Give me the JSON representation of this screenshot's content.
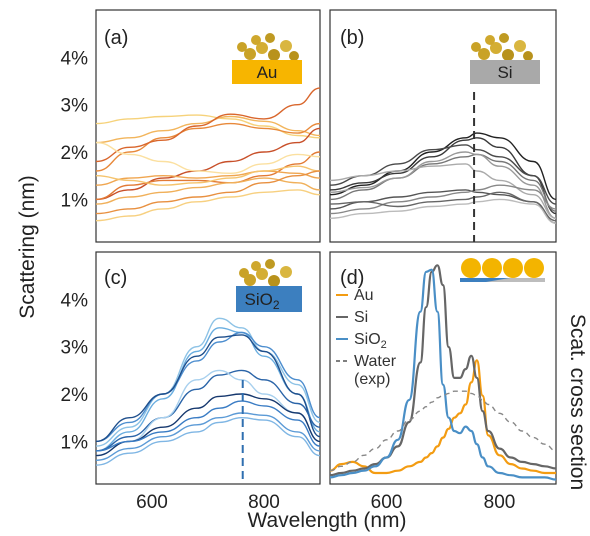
{
  "figure": {
    "ylabel": "Scattering (nm)",
    "xlabel": "Wavelength (nm)",
    "right_label": "Scat. cross section"
  },
  "chart_data": [
    {
      "panel": "(a)",
      "type": "line",
      "material_badge": "Au",
      "badge_color": "#f7b500",
      "xlim": [
        500,
        900
      ],
      "ylim": [
        0.1,
        5.0
      ],
      "yticks": [
        "1%",
        "2%",
        "3%",
        "4%"
      ],
      "ytick_values": [
        1,
        2,
        3,
        4
      ],
      "xticks": [],
      "x": [
        500,
        560,
        620,
        680,
        740,
        800,
        860,
        900
      ],
      "series": [
        {
          "color": "#f6d27a",
          "values": [
            2.6,
            2.7,
            2.75,
            2.78,
            2.7,
            2.55,
            2.35,
            2.3
          ]
        },
        {
          "color": "#f2b55c",
          "values": [
            2.2,
            2.3,
            2.45,
            2.6,
            2.75,
            2.65,
            2.45,
            2.35
          ]
        },
        {
          "color": "#e8893a",
          "values": [
            1.6,
            2.0,
            2.3,
            2.5,
            2.6,
            2.5,
            2.4,
            2.6
          ]
        },
        {
          "color": "#d9662c",
          "values": [
            1.8,
            2.1,
            2.25,
            2.55,
            2.8,
            2.7,
            3.0,
            3.35
          ]
        },
        {
          "color": "#c8502a",
          "values": [
            1.0,
            1.2,
            1.45,
            1.6,
            1.8,
            2.0,
            2.2,
            2.5
          ]
        },
        {
          "color": "#e27a35",
          "values": [
            1.0,
            1.3,
            1.4,
            1.4,
            1.35,
            1.5,
            1.75,
            2.0
          ]
        },
        {
          "color": "#f0a650",
          "values": [
            1.3,
            1.45,
            1.5,
            1.45,
            1.5,
            1.6,
            1.55,
            1.45
          ]
        },
        {
          "color": "#f5c46e",
          "values": [
            1.5,
            1.4,
            1.3,
            1.35,
            1.45,
            1.6,
            1.7,
            1.6
          ]
        },
        {
          "color": "#f0b05a",
          "values": [
            0.9,
            1.05,
            1.15,
            1.25,
            1.35,
            1.45,
            1.35,
            1.2
          ]
        },
        {
          "color": "#e89040",
          "values": [
            0.7,
            0.8,
            0.95,
            1.05,
            1.15,
            1.35,
            1.5,
            1.6
          ]
        },
        {
          "color": "#f7d080",
          "values": [
            0.55,
            0.65,
            0.8,
            0.95,
            1.05,
            1.15,
            1.2,
            1.1
          ]
        },
        {
          "color": "#fbe0a0",
          "values": [
            2.2,
            1.95,
            1.8,
            1.6,
            1.55,
            1.75,
            1.95,
            1.9
          ]
        }
      ]
    },
    {
      "panel": "(b)",
      "type": "line",
      "material_badge": "Si",
      "badge_color": "#a9a9a9",
      "xlim": [
        500,
        900
      ],
      "ylim": [
        0.1,
        5.0
      ],
      "yticks": [],
      "xticks": [],
      "vline_x": 755,
      "x": [
        500,
        560,
        620,
        680,
        740,
        760,
        800,
        860,
        900
      ],
      "series": [
        {
          "color": "#222222",
          "values": [
            1.1,
            1.3,
            1.6,
            2.0,
            2.3,
            2.4,
            2.3,
            1.8,
            1.0
          ]
        },
        {
          "color": "#3a3a3a",
          "values": [
            1.2,
            1.35,
            1.55,
            1.9,
            2.25,
            2.3,
            2.1,
            1.5,
            0.7
          ]
        },
        {
          "color": "#4a4a4a",
          "values": [
            1.3,
            1.5,
            1.75,
            2.05,
            2.15,
            2.05,
            1.9,
            1.5,
            0.9
          ]
        },
        {
          "color": "#777777",
          "values": [
            1.0,
            1.2,
            1.45,
            1.75,
            1.9,
            1.95,
            1.8,
            1.4,
            0.75
          ]
        },
        {
          "color": "#999999",
          "values": [
            1.15,
            1.25,
            1.45,
            1.8,
            2.0,
            1.95,
            1.7,
            1.3,
            0.6
          ]
        },
        {
          "color": "#aaaaaa",
          "values": [
            1.4,
            1.5,
            1.6,
            1.7,
            1.75,
            1.6,
            1.4,
            1.1,
            0.6
          ]
        },
        {
          "color": "#555555",
          "values": [
            0.8,
            0.95,
            1.05,
            1.15,
            1.2,
            1.15,
            1.1,
            0.95,
            0.5
          ]
        },
        {
          "color": "#888888",
          "values": [
            0.7,
            0.8,
            0.95,
            1.05,
            1.15,
            1.2,
            1.3,
            1.2,
            0.8
          ]
        },
        {
          "color": "#666666",
          "values": [
            0.9,
            0.95,
            0.85,
            0.95,
            1.0,
            1.05,
            1.15,
            0.95,
            0.55
          ]
        },
        {
          "color": "#bbbbbb",
          "values": [
            0.6,
            0.7,
            0.75,
            0.85,
            0.9,
            0.95,
            1.0,
            0.9,
            0.5
          ]
        }
      ]
    },
    {
      "panel": "(c)",
      "type": "line",
      "material_badge": "SiO",
      "material_badge_sub": "2",
      "badge_color": "#3c7fbf",
      "xlim": [
        500,
        900
      ],
      "ylim": [
        0.1,
        5.0
      ],
      "yticks": [
        "1%",
        "2%",
        "3%",
        "4%"
      ],
      "ytick_values": [
        1,
        2,
        3,
        4
      ],
      "xticks": [
        "600",
        "800"
      ],
      "xtick_values": [
        600,
        800
      ],
      "vline_x": 762,
      "x": [
        500,
        560,
        620,
        680,
        720,
        760,
        800,
        860,
        900
      ],
      "series": [
        {
          "color": "#8ec3e6",
          "values": [
            0.9,
            1.3,
            2.0,
            3.0,
            3.6,
            3.4,
            2.9,
            2.2,
            1.4
          ]
        },
        {
          "color": "#6aaee0",
          "values": [
            0.8,
            1.2,
            1.9,
            2.9,
            3.4,
            3.3,
            2.8,
            2.0,
            1.2
          ]
        },
        {
          "color": "#4d8ecf",
          "values": [
            1.0,
            1.4,
            2.0,
            2.7,
            3.1,
            3.3,
            3.0,
            2.3,
            1.5
          ]
        },
        {
          "color": "#1f4f8c",
          "values": [
            1.0,
            1.5,
            2.0,
            2.8,
            3.2,
            3.25,
            2.9,
            2.0,
            1.1
          ]
        },
        {
          "color": "#2a64a8",
          "values": [
            0.8,
            1.1,
            1.5,
            2.1,
            2.4,
            2.5,
            2.3,
            1.8,
            1.3
          ]
        },
        {
          "color": "#a8d0ee",
          "values": [
            0.7,
            1.0,
            1.5,
            2.3,
            2.5,
            2.3,
            2.0,
            1.6,
            1.0
          ]
        },
        {
          "color": "#16386e",
          "values": [
            0.7,
            1.0,
            1.3,
            1.7,
            1.95,
            2.0,
            1.9,
            1.6,
            1.0
          ]
        },
        {
          "color": "#3a7cc4",
          "values": [
            0.8,
            1.0,
            1.2,
            1.5,
            1.7,
            1.85,
            1.75,
            1.45,
            0.9
          ]
        },
        {
          "color": "#5b9ad6",
          "values": [
            0.6,
            0.85,
            1.1,
            1.35,
            1.5,
            1.6,
            1.55,
            1.2,
            0.8
          ]
        },
        {
          "color": "#7fb6e4",
          "values": [
            0.5,
            0.75,
            1.0,
            1.2,
            1.4,
            1.5,
            1.45,
            1.1,
            0.7
          ]
        }
      ]
    },
    {
      "panel": "(d)",
      "type": "line",
      "xlim": [
        500,
        900
      ],
      "ylim": [
        0,
        1.05
      ],
      "yticks": [],
      "xticks": [
        "600",
        "800"
      ],
      "xtick_values": [
        600,
        800
      ],
      "legend": [
        {
          "label": "Au",
          "color": "#f39c12",
          "dash": false
        },
        {
          "label": "Si",
          "color": "#666666",
          "dash": false
        },
        {
          "label": "SiO",
          "sub": "2",
          "color": "#4a8fc6",
          "dash": false
        },
        {
          "label": "Water",
          "label2": "(exp)",
          "color": "#555555",
          "dash": true
        }
      ],
      "x": [
        500,
        520,
        540,
        560,
        580,
        600,
        620,
        640,
        660,
        670,
        680,
        690,
        700,
        710,
        720,
        730,
        740,
        750,
        760,
        770,
        780,
        800,
        820,
        840,
        860,
        880,
        900
      ],
      "series": [
        {
          "color": "#f39c12",
          "dash": false,
          "values": [
            0.06,
            0.09,
            0.1,
            0.08,
            0.05,
            0.05,
            0.06,
            0.08,
            0.1,
            0.12,
            0.14,
            0.17,
            0.21,
            0.25,
            0.3,
            0.32,
            0.36,
            0.46,
            0.56,
            0.4,
            0.22,
            0.13,
            0.09,
            0.07,
            0.06,
            0.05,
            0.05
          ]
        },
        {
          "color": "#666666",
          "dash": false,
          "values": [
            0.04,
            0.05,
            0.06,
            0.07,
            0.09,
            0.12,
            0.17,
            0.28,
            0.55,
            0.8,
            0.96,
            0.99,
            0.9,
            0.62,
            0.48,
            0.48,
            0.52,
            0.58,
            0.48,
            0.33,
            0.24,
            0.16,
            0.12,
            0.1,
            0.09,
            0.08,
            0.07
          ]
        },
        {
          "color": "#4a8fc6",
          "dash": false,
          "values": [
            0.03,
            0.04,
            0.05,
            0.06,
            0.08,
            0.12,
            0.2,
            0.38,
            0.78,
            0.96,
            0.97,
            0.78,
            0.45,
            0.3,
            0.24,
            0.23,
            0.26,
            0.24,
            0.18,
            0.12,
            0.08,
            0.05,
            0.04,
            0.03,
            0.03,
            0.03,
            0.02
          ]
        },
        {
          "color": "#888888",
          "dash": true,
          "values": [
            0.06,
            0.08,
            0.1,
            0.13,
            0.16,
            0.2,
            0.24,
            0.29,
            0.33,
            0.35,
            0.37,
            0.39,
            0.4,
            0.41,
            0.42,
            0.42,
            0.42,
            0.41,
            0.4,
            0.38,
            0.36,
            0.32,
            0.28,
            0.24,
            0.21,
            0.18,
            0.15
          ]
        }
      ]
    }
  ]
}
